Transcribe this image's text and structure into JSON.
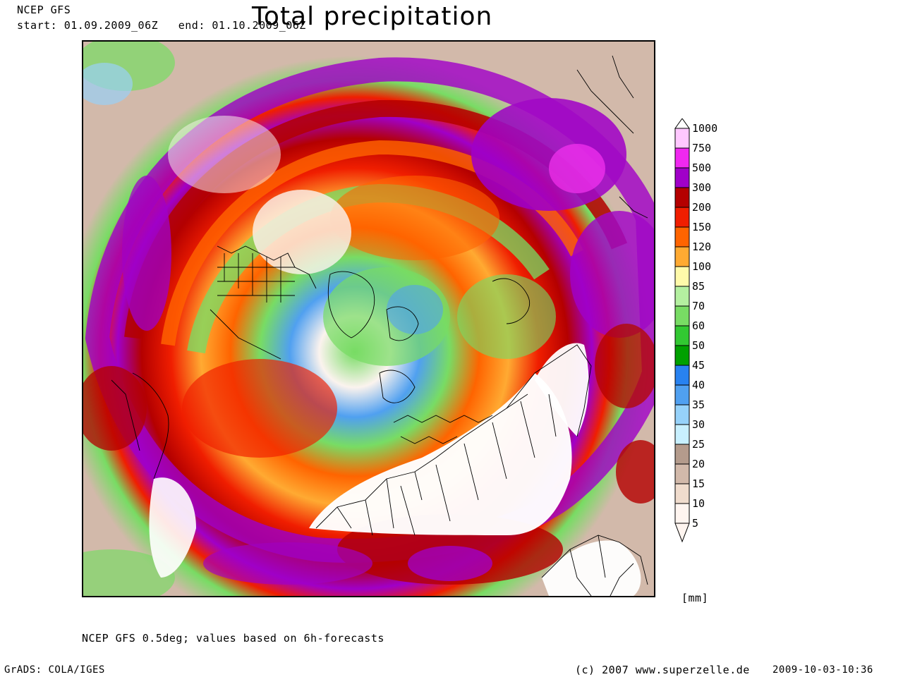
{
  "header": {
    "model": "NCEP GFS",
    "start_label": "start:",
    "start_value": "01.09.2009_06Z",
    "end_label": "end:",
    "end_value": "01.10.2009_06Z",
    "title": "Total precipitation"
  },
  "legend": {
    "unit": "[mm]",
    "levels": [
      {
        "value": "1000",
        "color": "#ffffff"
      },
      {
        "value": "750",
        "color": "#ffc8ff"
      },
      {
        "value": "500",
        "color": "#f028f0"
      },
      {
        "value": "300",
        "color": "#a000c8"
      },
      {
        "value": "200",
        "color": "#b40000"
      },
      {
        "value": "150",
        "color": "#f01e00"
      },
      {
        "value": "120",
        "color": "#ff6400"
      },
      {
        "value": "100",
        "color": "#ffaa32"
      },
      {
        "value": "85",
        "color": "#fffaaa"
      },
      {
        "value": "70",
        "color": "#b4f0a0"
      },
      {
        "value": "60",
        "color": "#78dc64"
      },
      {
        "value": "50",
        "color": "#32c832"
      },
      {
        "value": "45",
        "color": "#00a000"
      },
      {
        "value": "40",
        "color": "#2882f0"
      },
      {
        "value": "35",
        "color": "#50a0f0"
      },
      {
        "value": "30",
        "color": "#96d2fa"
      },
      {
        "value": "25",
        "color": "#c8f0ff"
      },
      {
        "value": "20",
        "color": "#b49b8c"
      },
      {
        "value": "15",
        "color": "#d2b9aa"
      },
      {
        "value": "10",
        "color": "#f0dccd"
      },
      {
        "value": "5",
        "color": "#fff5f0"
      }
    ]
  },
  "footer": {
    "note": "NCEP GFS 0.5deg; values based on 6h-forecasts",
    "software": "GrADS: COLA/IGES",
    "copyright": "(c) 2007 www.superzelle.de",
    "timestamp": "2009-10-03-10:36"
  }
}
